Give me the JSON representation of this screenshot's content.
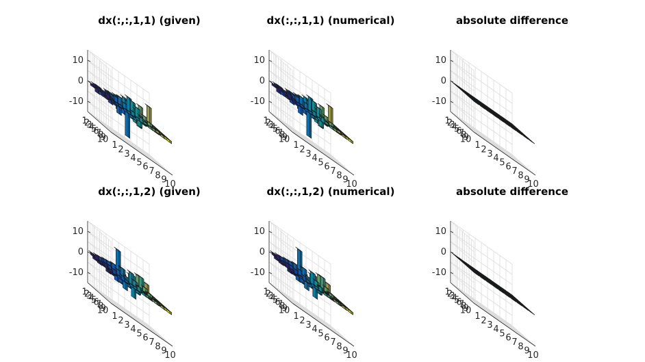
{
  "chart_data": [
    {
      "type": "bar3",
      "title": "dx(:,:,1,1) (given)",
      "zticks": [
        "10",
        "0",
        "-10"
      ],
      "yticks": [
        "1",
        "2",
        "3",
        "4",
        "5",
        "6",
        "7",
        "8",
        "9",
        "10"
      ],
      "xticks": [
        "1",
        "2",
        "3",
        "4",
        "5",
        "6",
        "7",
        "8",
        "9",
        "10"
      ],
      "zlim": [
        -15,
        15
      ],
      "values": [
        [
          -1,
          1,
          -2,
          2,
          1,
          -1,
          1,
          0,
          2,
          1
        ],
        [
          1,
          -2,
          2,
          -1,
          3,
          2,
          -1,
          1,
          0,
          1
        ],
        [
          -2,
          1,
          -1,
          3,
          -2,
          4,
          2,
          6,
          1,
          1
        ],
        [
          1,
          -1,
          2,
          -3,
          5,
          -2,
          3,
          -1,
          9,
          1
        ],
        [
          0,
          2,
          -1,
          4,
          -3,
          6,
          -4,
          3,
          1,
          1
        ],
        [
          1,
          -2,
          3,
          -2,
          7,
          -3,
          2,
          1,
          0,
          1
        ],
        [
          -1,
          1,
          -4,
          3,
          -2,
          5,
          -1,
          2,
          1,
          1
        ],
        [
          2,
          -1,
          1,
          -12,
          2,
          -3,
          1,
          0,
          1,
          1
        ],
        [
          0,
          1,
          -2,
          1,
          -1,
          2,
          0,
          1,
          0,
          1
        ],
        [
          1,
          0,
          1,
          -1,
          1,
          0,
          1,
          0,
          1,
          1
        ]
      ]
    },
    {
      "type": "bar3",
      "title": "dx(:,:,1,1) (numerical)",
      "zticks": [
        "10",
        "0",
        "-10"
      ],
      "yticks": [
        "1",
        "2",
        "3",
        "4",
        "5",
        "6",
        "7",
        "8",
        "9",
        "10"
      ],
      "xticks": [
        "1",
        "2",
        "3",
        "4",
        "5",
        "6",
        "7",
        "8",
        "9",
        "10"
      ],
      "zlim": [
        -15,
        15
      ],
      "values": [
        [
          -1,
          1,
          -2,
          2,
          1,
          -1,
          1,
          0,
          2,
          1
        ],
        [
          1,
          -2,
          2,
          -1,
          3,
          2,
          -1,
          1,
          0,
          1
        ],
        [
          -2,
          1,
          -1,
          3,
          -2,
          4,
          2,
          6,
          1,
          1
        ],
        [
          1,
          -1,
          2,
          -3,
          5,
          -2,
          3,
          -1,
          9,
          1
        ],
        [
          0,
          2,
          -1,
          4,
          -3,
          6,
          -4,
          3,
          1,
          1
        ],
        [
          1,
          -2,
          3,
          -2,
          7,
          -3,
          2,
          1,
          0,
          1
        ],
        [
          -1,
          1,
          -4,
          3,
          -2,
          5,
          -1,
          2,
          1,
          1
        ],
        [
          2,
          -1,
          1,
          -12,
          2,
          -3,
          1,
          0,
          1,
          1
        ],
        [
          0,
          1,
          -2,
          1,
          -1,
          2,
          0,
          1,
          0,
          1
        ],
        [
          1,
          0,
          1,
          -1,
          1,
          0,
          1,
          0,
          1,
          1
        ]
      ]
    },
    {
      "type": "bar3",
      "title": "absolute difference",
      "zticks": [
        "10",
        "0",
        "-10"
      ],
      "yticks": [
        "1",
        "2",
        "3",
        "4",
        "5",
        "6",
        "7",
        "8",
        "9",
        "10"
      ],
      "xticks": [
        "1",
        "2",
        "3",
        "4",
        "5",
        "6",
        "7",
        "8",
        "9",
        "10"
      ],
      "zlim": [
        -15,
        15
      ],
      "values": [
        [
          0,
          0,
          0,
          0,
          0,
          0,
          0,
          0,
          0,
          0
        ],
        [
          0,
          0,
          0,
          0,
          0,
          0,
          0,
          0,
          0,
          0
        ],
        [
          0,
          0,
          0,
          0,
          0,
          0,
          0,
          0,
          0,
          0
        ],
        [
          0,
          0,
          0,
          0,
          0,
          0,
          0,
          0,
          0,
          0
        ],
        [
          0,
          0,
          0,
          0,
          0,
          0,
          0,
          0,
          0,
          0
        ],
        [
          0,
          0,
          0,
          0,
          0,
          0,
          0,
          0,
          0,
          0
        ],
        [
          0,
          0,
          0,
          0,
          0,
          0,
          0,
          0,
          0,
          0
        ],
        [
          0,
          0,
          0,
          0,
          0,
          0,
          0,
          0,
          0,
          0
        ],
        [
          0,
          0,
          0,
          0,
          0,
          0,
          0,
          0,
          0,
          0
        ],
        [
          0,
          0,
          0,
          0,
          0,
          0,
          0,
          0,
          0,
          0
        ]
      ]
    },
    {
      "type": "bar3",
      "title": "dx(:,:,1,2) (given)",
      "zticks": [
        "10",
        "0",
        "-10"
      ],
      "yticks": [
        "1",
        "2",
        "3",
        "4",
        "5",
        "6",
        "7",
        "8",
        "9",
        "10"
      ],
      "xticks": [
        "1",
        "2",
        "3",
        "4",
        "5",
        "6",
        "7",
        "8",
        "9",
        "10"
      ],
      "zlim": [
        -15,
        15
      ],
      "values": [
        [
          1,
          -1,
          2,
          -1,
          1,
          2,
          1,
          0,
          1,
          1
        ],
        [
          -1,
          2,
          -1,
          3,
          -2,
          1,
          3,
          6,
          1,
          1
        ],
        [
          2,
          -1,
          3,
          -2,
          4,
          -1,
          2,
          1,
          5,
          1
        ],
        [
          -1,
          3,
          -2,
          12,
          -3,
          4,
          -1,
          2,
          1,
          1
        ],
        [
          1,
          -2,
          4,
          -3,
          2,
          5,
          1,
          3,
          1,
          1
        ],
        [
          0,
          2,
          -3,
          5,
          -2,
          3,
          7,
          1,
          0,
          1
        ],
        [
          2,
          -1,
          3,
          -4,
          6,
          -2,
          1,
          2,
          1,
          1
        ],
        [
          -1,
          2,
          -2,
          1,
          -5,
          2,
          1,
          0,
          1,
          1
        ],
        [
          1,
          0,
          2,
          -1,
          1,
          0,
          1,
          1,
          0,
          1
        ],
        [
          0,
          1,
          0,
          1,
          -1,
          1,
          0,
          1,
          1,
          1
        ]
      ]
    },
    {
      "type": "bar3",
      "title": "dx(:,:,1,2) (numerical)",
      "zticks": [
        "10",
        "0",
        "-10"
      ],
      "yticks": [
        "1",
        "2",
        "3",
        "4",
        "5",
        "6",
        "7",
        "8",
        "9",
        "10"
      ],
      "xticks": [
        "1",
        "2",
        "3",
        "4",
        "5",
        "6",
        "7",
        "8",
        "9",
        "10"
      ],
      "zlim": [
        -15,
        15
      ],
      "values": [
        [
          1,
          -1,
          2,
          -1,
          1,
          2,
          1,
          0,
          1,
          1
        ],
        [
          -1,
          2,
          -1,
          3,
          -2,
          1,
          3,
          6,
          1,
          1
        ],
        [
          2,
          -1,
          3,
          -2,
          4,
          -1,
          2,
          1,
          5,
          1
        ],
        [
          -1,
          3,
          -2,
          12,
          -3,
          4,
          -1,
          2,
          1,
          1
        ],
        [
          1,
          -2,
          4,
          -3,
          2,
          5,
          1,
          3,
          1,
          1
        ],
        [
          0,
          2,
          -3,
          5,
          -2,
          3,
          7,
          1,
          0,
          1
        ],
        [
          2,
          -1,
          3,
          -4,
          6,
          -2,
          1,
          2,
          1,
          1
        ],
        [
          -1,
          2,
          -2,
          1,
          -5,
          2,
          1,
          0,
          1,
          1
        ],
        [
          1,
          0,
          2,
          -1,
          1,
          0,
          1,
          1,
          0,
          1
        ],
        [
          0,
          1,
          0,
          1,
          -1,
          1,
          0,
          1,
          1,
          1
        ]
      ]
    },
    {
      "type": "bar3",
      "title": "absolute difference",
      "zticks": [
        "10",
        "0",
        "-10"
      ],
      "yticks": [
        "1",
        "2",
        "3",
        "4",
        "5",
        "6",
        "7",
        "8",
        "9",
        "10"
      ],
      "xticks": [
        "1",
        "2",
        "3",
        "4",
        "5",
        "6",
        "7",
        "8",
        "9",
        "10"
      ],
      "zlim": [
        -15,
        15
      ],
      "values": [
        [
          0,
          0,
          0,
          0,
          0,
          0,
          0,
          0,
          0,
          0
        ],
        [
          0,
          0,
          0,
          0,
          0,
          0,
          0,
          0,
          0,
          0
        ],
        [
          0,
          0,
          0,
          0,
          0,
          0,
          0,
          0,
          0,
          0
        ],
        [
          0,
          0,
          0,
          0,
          0,
          0,
          0,
          0,
          0,
          0
        ],
        [
          0,
          0,
          0,
          0,
          0,
          0,
          0,
          0,
          0,
          0
        ],
        [
          0,
          0,
          0,
          0,
          0,
          0,
          0,
          0,
          0,
          0
        ],
        [
          0,
          0,
          0,
          0,
          0,
          0,
          0,
          0,
          0,
          0
        ],
        [
          0,
          0,
          0,
          0,
          0,
          0,
          0,
          0,
          0,
          0
        ],
        [
          0,
          0,
          0,
          0,
          0,
          0,
          0,
          0,
          0,
          0
        ],
        [
          0,
          0,
          0,
          0,
          0,
          0,
          0,
          0,
          0,
          0
        ]
      ]
    }
  ],
  "colormap": "parula"
}
